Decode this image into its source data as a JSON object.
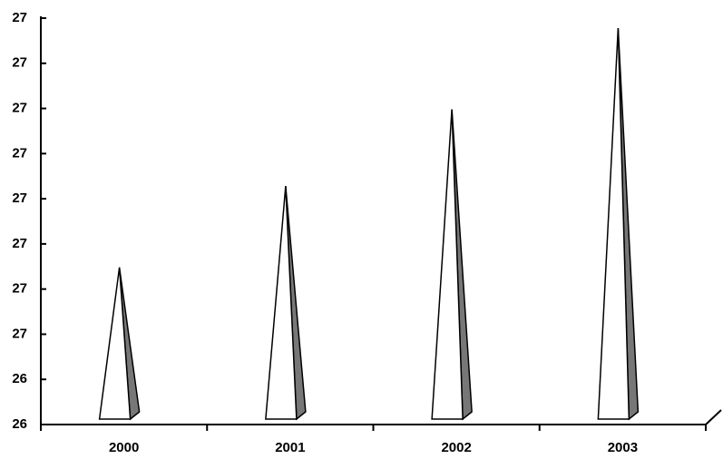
{
  "chart_data": {
    "type": "pyramid",
    "categories": [
      "2000",
      "2001",
      "2002",
      "2003"
    ],
    "values": [
      26.66,
      26.84,
      27.01,
      27.19
    ],
    "color": "#ffffff",
    "ylim": [
      26.3,
      27.2
    ],
    "yticks": [
      {
        "value": 26.3,
        "label": "26"
      },
      {
        "value": 26.4,
        "label": "26"
      },
      {
        "value": 26.5,
        "label": "27"
      },
      {
        "value": 26.6,
        "label": "27"
      },
      {
        "value": 26.7,
        "label": "27"
      },
      {
        "value": 26.8,
        "label": "27"
      },
      {
        "value": 26.9,
        "label": "27"
      },
      {
        "value": 27.0,
        "label": "27"
      },
      {
        "value": 27.1,
        "label": "27"
      },
      {
        "value": 27.2,
        "label": "27"
      }
    ],
    "grid": false
  }
}
